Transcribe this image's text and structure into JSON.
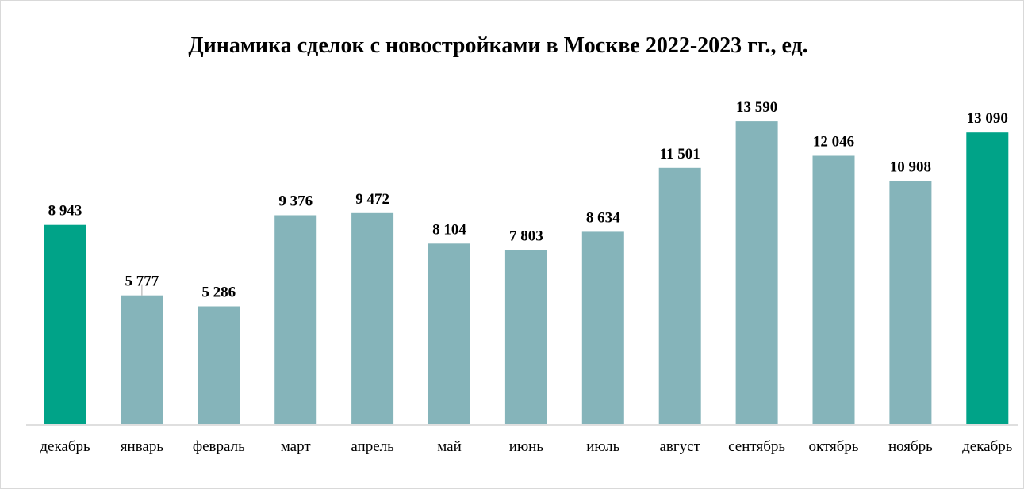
{
  "chart_data": {
    "type": "bar",
    "title": "Динамика сделок с новостройками в Москве 2022-2023 гг., ед.",
    "xlabel": "",
    "ylabel": "",
    "ylim": [
      0,
      15000
    ],
    "grid": false,
    "legend": "none",
    "categories": [
      "декабрь",
      "январь",
      "февраль",
      "март",
      "апрель",
      "май",
      "июнь",
      "июль",
      "август",
      "сентябрь",
      "октябрь",
      "ноябрь",
      "декабрь"
    ],
    "values": [
      8943,
      5777,
      5286,
      9376,
      9472,
      8104,
      7803,
      8634,
      11501,
      13590,
      12046,
      10908,
      13090
    ],
    "value_labels": [
      "8 943",
      "5 777",
      "5 286",
      "9 376",
      "9 472",
      "8 104",
      "7 803",
      "8 634",
      "11 501",
      "13 590",
      "12 046",
      "10 908",
      "13 090"
    ],
    "bar_colors": [
      "#00a388",
      "#85b4ba",
      "#85b4ba",
      "#85b4ba",
      "#85b4ba",
      "#85b4ba",
      "#85b4ba",
      "#85b4ba",
      "#85b4ba",
      "#85b4ba",
      "#85b4ba",
      "#85b4ba",
      "#00a388"
    ],
    "colors": {
      "highlight": "#00a388",
      "regular": "#85b4ba",
      "axis": "#bfbfbf"
    }
  }
}
